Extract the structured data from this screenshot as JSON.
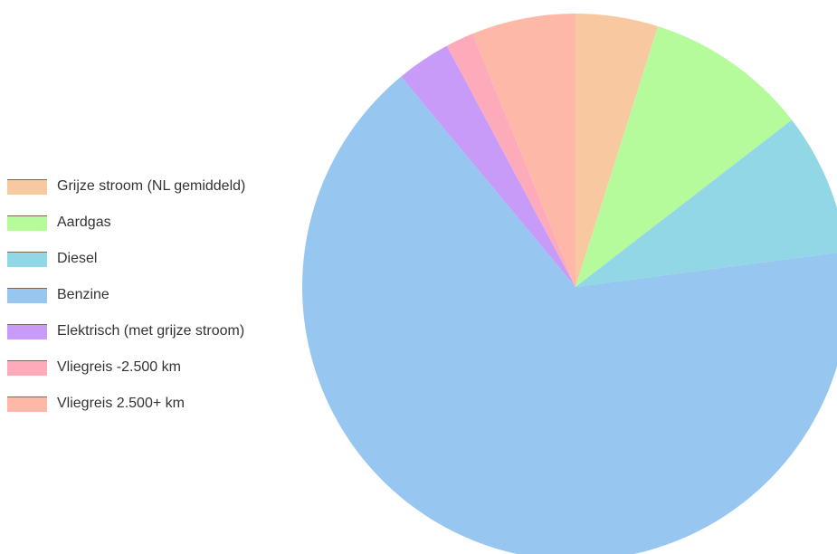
{
  "chart_data": {
    "type": "pie",
    "title": "",
    "legend_position": "left",
    "start_angle_deg": 0,
    "direction": "clockwise",
    "slices": [
      {
        "label": "Grijze stroom (NL gemiddeld)",
        "value": 5.0,
        "color": "#f8c9a0"
      },
      {
        "label": "Aardgas",
        "value": 9.9,
        "color": "#b6fb9b"
      },
      {
        "label": "Diesel",
        "value": 8.6,
        "color": "#92d7e6"
      },
      {
        "label": "Benzine",
        "value": 67.7,
        "color": "#97c7f0"
      },
      {
        "label": "Elektrisch (met grijze stroom)",
        "value": 3.3,
        "color": "#c99bf8"
      },
      {
        "label": "Vliegreis -2.500 km",
        "value": 1.7,
        "color": "#fdaabb"
      },
      {
        "label": "Vliegreis 2.500+ km",
        "value": 6.3,
        "color": "#fdb8a8"
      }
    ]
  }
}
